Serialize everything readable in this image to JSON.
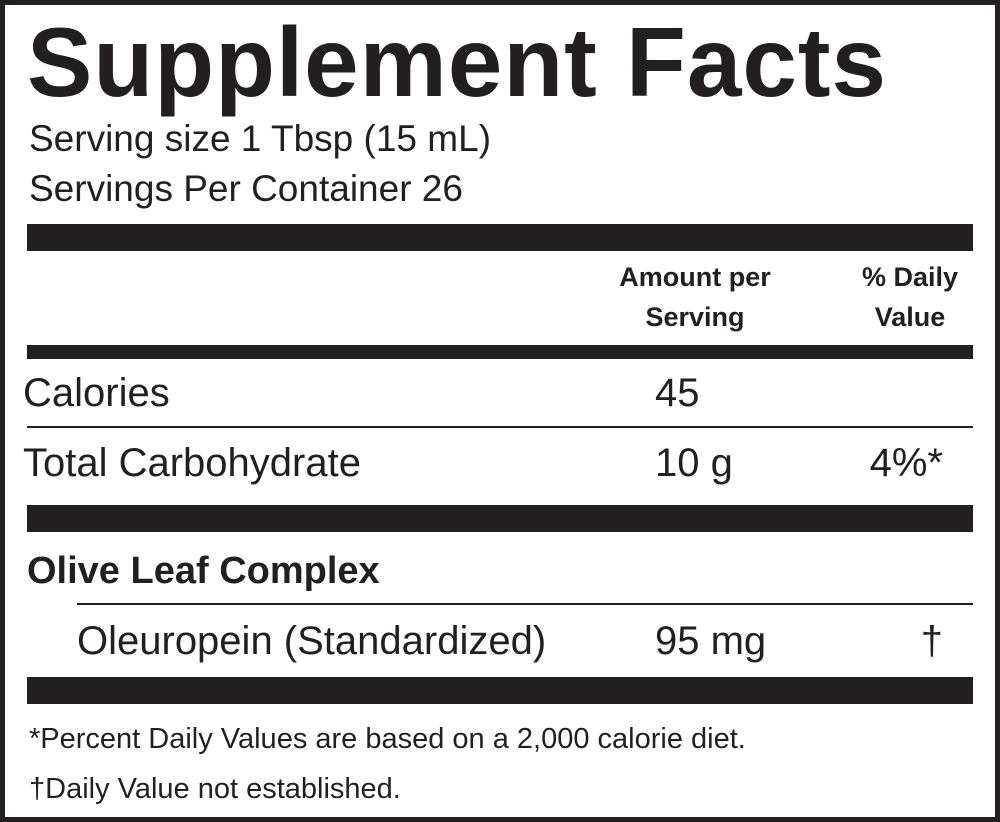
{
  "title": "Supplement Facts",
  "serving_size": "Serving size 1 Tbsp (15 mL)",
  "servings_per_container": "Servings Per Container 26",
  "headers": {
    "amount_line1": "Amount per",
    "amount_line2": "Serving",
    "dv_line1": "% Daily",
    "dv_line2": "Value"
  },
  "rows": [
    {
      "name": "Calories",
      "amount": "45",
      "dv": ""
    },
    {
      "name": "Total Carbohydrate",
      "amount": "10 g",
      "dv": "4%*"
    }
  ],
  "section": {
    "title": "Olive Leaf Complex",
    "items": [
      {
        "name": "Oleuropein (Standardized)",
        "amount": "95 mg",
        "dv": "†"
      }
    ]
  },
  "footnotes": [
    "*Percent Daily Values are based on a 2,000 calorie diet.",
    "†Daily Value not established."
  ],
  "colors": {
    "ink": "#231f20",
    "background": "#ffffff"
  }
}
